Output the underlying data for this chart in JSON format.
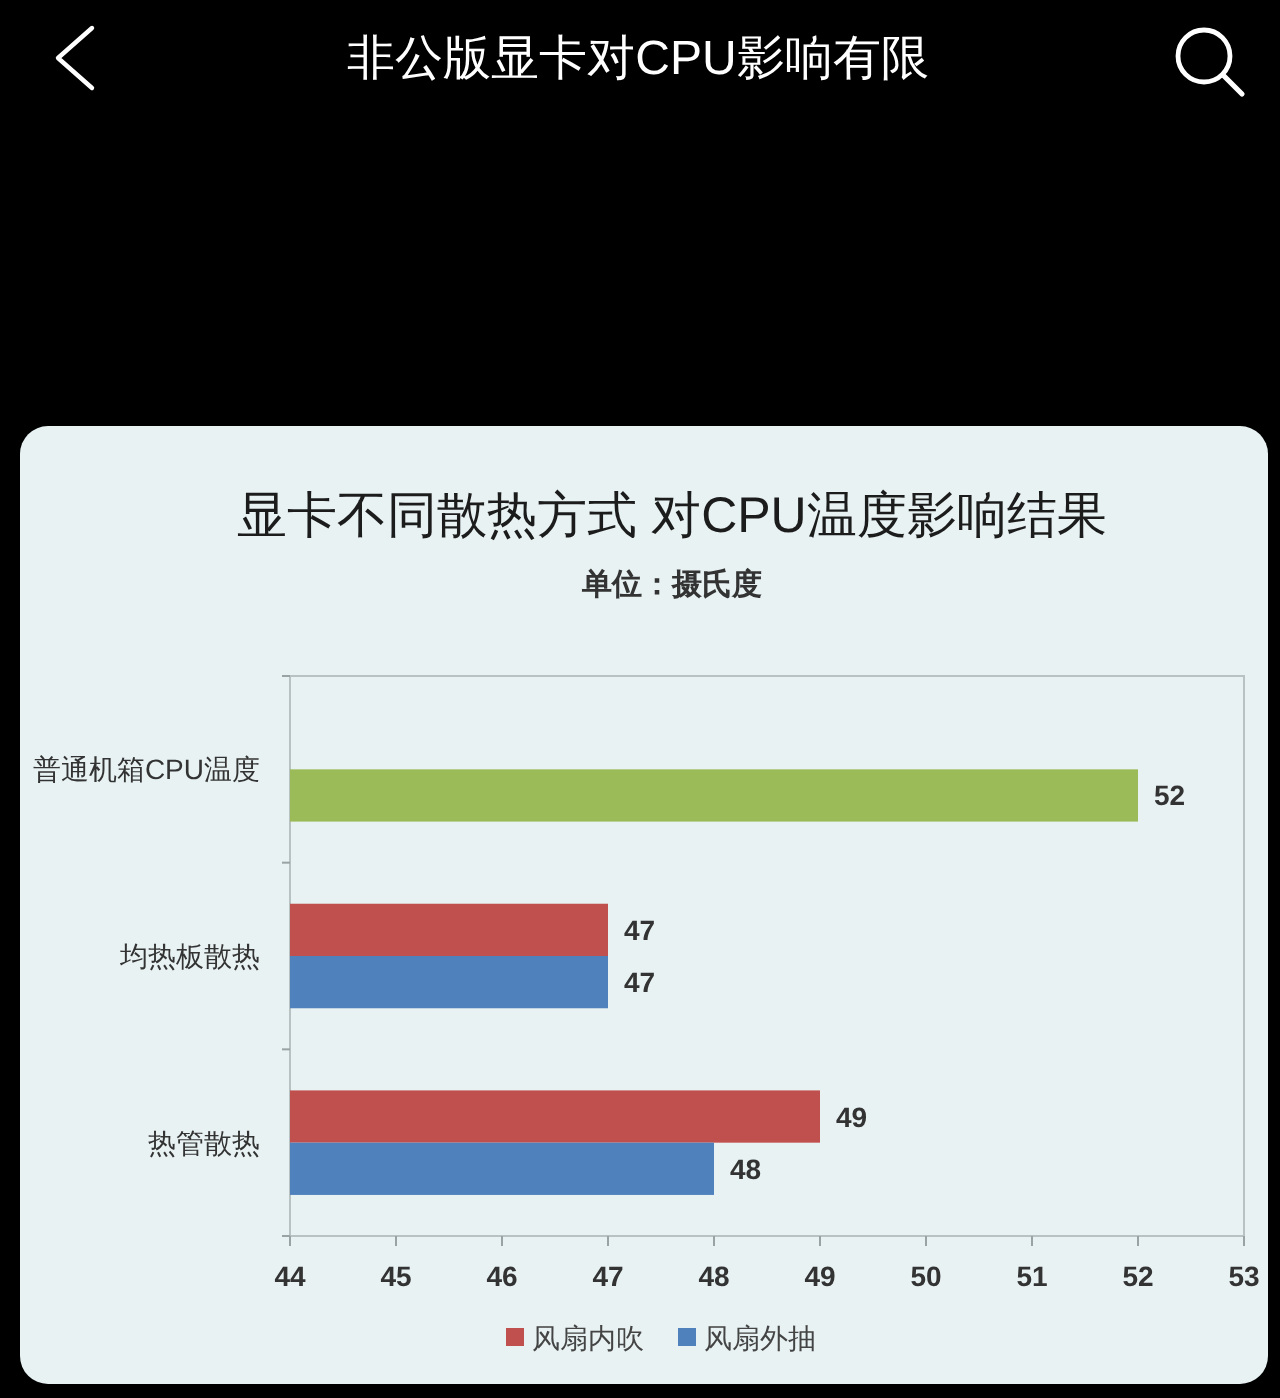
{
  "chart_data": {
    "type": "bar",
    "orientation": "horizontal",
    "title": "显卡不同散热方式 对CPU温度影响结果",
    "subtitle": "单位：摄氏度",
    "annotations": [
      "非公版显卡对CPU影响有限"
    ],
    "categories": [
      "普通机箱CPU温度",
      "均热板散热",
      "热管散热"
    ],
    "series": [
      {
        "name": "风扇内吹",
        "color": "#c0504d",
        "values": [
          null,
          47,
          49
        ]
      },
      {
        "name": "风扇外抽",
        "color": "#4f81bd",
        "colors": [
          "#9bbb59",
          "#4f81bd",
          "#4f81bd"
        ],
        "values": [
          52,
          47,
          48
        ]
      }
    ],
    "xlim": [
      44,
      53
    ],
    "xticks": [
      44,
      45,
      46,
      47,
      48,
      49,
      50,
      51,
      52,
      53
    ],
    "data_labels": true,
    "legend": "bottom"
  }
}
